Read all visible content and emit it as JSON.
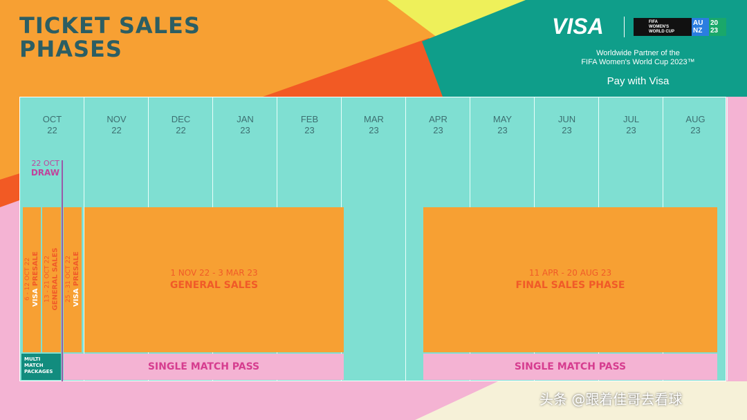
{
  "title_line1": "TICKET SALES",
  "title_line2": "PHASES",
  "sponsor": {
    "logo": "VISA",
    "tournament_logo": {
      "line1": "FIFA",
      "line2": "WOMEN'S",
      "line3": "WORLD CUP",
      "hosts_top": "AU",
      "hosts_bottom": "NZ",
      "year_top": "20",
      "year_bottom": "23"
    },
    "partner_line1": "Worldwide Partner of the",
    "partner_line2": "FIFA Women's World Cup 2023™",
    "tagline": "Pay with Visa"
  },
  "months": [
    {
      "m": "OCT",
      "y": "22"
    },
    {
      "m": "NOV",
      "y": "22"
    },
    {
      "m": "DEC",
      "y": "22"
    },
    {
      "m": "JAN",
      "y": "23"
    },
    {
      "m": "FEB",
      "y": "23"
    },
    {
      "m": "MAR",
      "y": "23"
    },
    {
      "m": "APR",
      "y": "23"
    },
    {
      "m": "MAY",
      "y": "23"
    },
    {
      "m": "JUN",
      "y": "23"
    },
    {
      "m": "JUL",
      "y": "23"
    },
    {
      "m": "AUG",
      "y": "23"
    }
  ],
  "draw": {
    "date": "22 OCT",
    "label": "DRAW"
  },
  "early_phases": [
    {
      "dates": "6 - 12 OCT 22",
      "brand": "VISA",
      "name": "PRESALE"
    },
    {
      "dates": "13 - 21 OCT 22",
      "brand": "",
      "name": "GENERAL SALES"
    },
    {
      "dates": "25 - 31 OCT 22",
      "brand": "VISA",
      "name": "PRESALE"
    }
  ],
  "general_sales": {
    "dates": "1 NOV 22 - 3 MAR 23",
    "name": "GENERAL SALES"
  },
  "final_sales": {
    "dates": "11 APR - 20 AUG 23",
    "name": "FINAL SALES PHASE"
  },
  "multi_match": [
    "MULTI",
    "MATCH",
    "PACKAGES"
  ],
  "single_match_pass": "SINGLE MATCH PASS",
  "watermark": "头条 @跟着佳哥去看球",
  "colors": {
    "orange": "#f7a033",
    "teal": "#7fdfd2",
    "pink": "#f4b3d3",
    "magenta": "#d63d8f",
    "dark_teal": "#0f9e8a"
  }
}
